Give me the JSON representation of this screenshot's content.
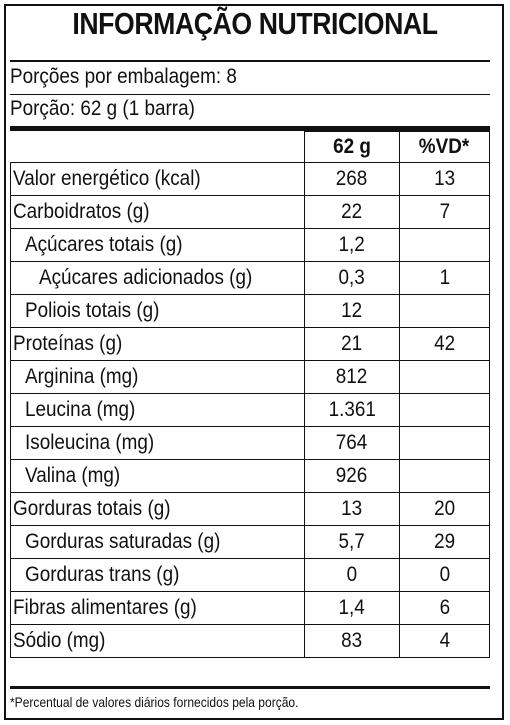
{
  "label": {
    "title": "INFORMAÇÃO NUTRICIONAL",
    "servings_per_package": "Porções por embalagem: 8",
    "serving_size": "Porção: 62 g (1 barra)",
    "columns": {
      "amount": "62 g",
      "daily_value": "%VD*"
    },
    "rows": [
      {
        "name": "Valor energético (kcal)",
        "amount": "268",
        "dv": "13"
      },
      {
        "name": "Carboidratos (g)",
        "amount": "22",
        "dv": "7"
      },
      {
        "name": "Açúcares totais (g)",
        "amount": "1,2",
        "dv": ""
      },
      {
        "name": "Açúcares adicionados (g)",
        "amount": "0,3",
        "dv": "1"
      },
      {
        "name": "Poliois totais (g)",
        "amount": "12",
        "dv": ""
      },
      {
        "name": "Proteínas (g)",
        "amount": "21",
        "dv": "42"
      },
      {
        "name": "Arginina (mg)",
        "amount": "812",
        "dv": ""
      },
      {
        "name": "Leucina (mg)",
        "amount": "1.361",
        "dv": ""
      },
      {
        "name": "Isoleucina (mg)",
        "amount": "764",
        "dv": ""
      },
      {
        "name": "Valina (mg)",
        "amount": "926",
        "dv": ""
      },
      {
        "name": "Gorduras totais (g)",
        "amount": "13",
        "dv": "20"
      },
      {
        "name": "Gorduras saturadas (g)",
        "amount": "5,7",
        "dv": "29"
      },
      {
        "name": "Gorduras trans (g)",
        "amount": "0",
        "dv": "0"
      },
      {
        "name": "Fibras alimentares (g)",
        "amount": "1,4",
        "dv": "6"
      },
      {
        "name": "Sódio (mg)",
        "amount": "83",
        "dv": "4"
      }
    ],
    "footnote": "*Percentual de valores diários fornecidos pela porção."
  }
}
